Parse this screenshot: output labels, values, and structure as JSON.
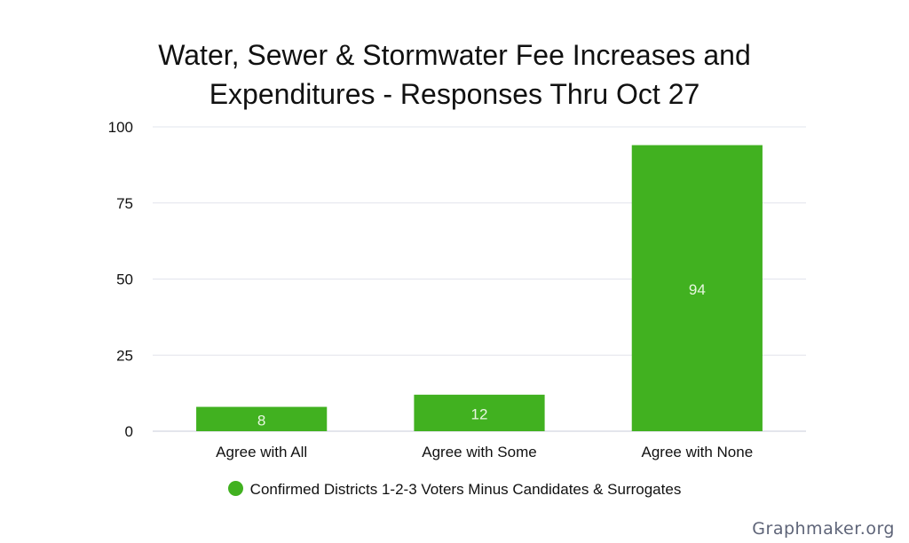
{
  "chart_data": {
    "type": "bar",
    "title_lines": [
      "Water, Sewer & Stormwater Fee Increases and",
      "Expenditures - Responses Thru Oct 27"
    ],
    "categories": [
      "Agree with All",
      "Agree with Some",
      "Agree with None"
    ],
    "series": [
      {
        "name": "Confirmed Districts 1-2-3 Voters Minus Candidates & Surrogates",
        "values": [
          8,
          12,
          94
        ],
        "color": "#41b120"
      }
    ],
    "data_labels": [
      "8",
      "12",
      "94"
    ],
    "yticks": [
      0,
      25,
      50,
      75,
      100
    ],
    "ylim": [
      0,
      100
    ],
    "xlabel": "",
    "ylabel": "",
    "grid": true,
    "legend_position": "bottom"
  },
  "watermark": "Graphmaker.org"
}
